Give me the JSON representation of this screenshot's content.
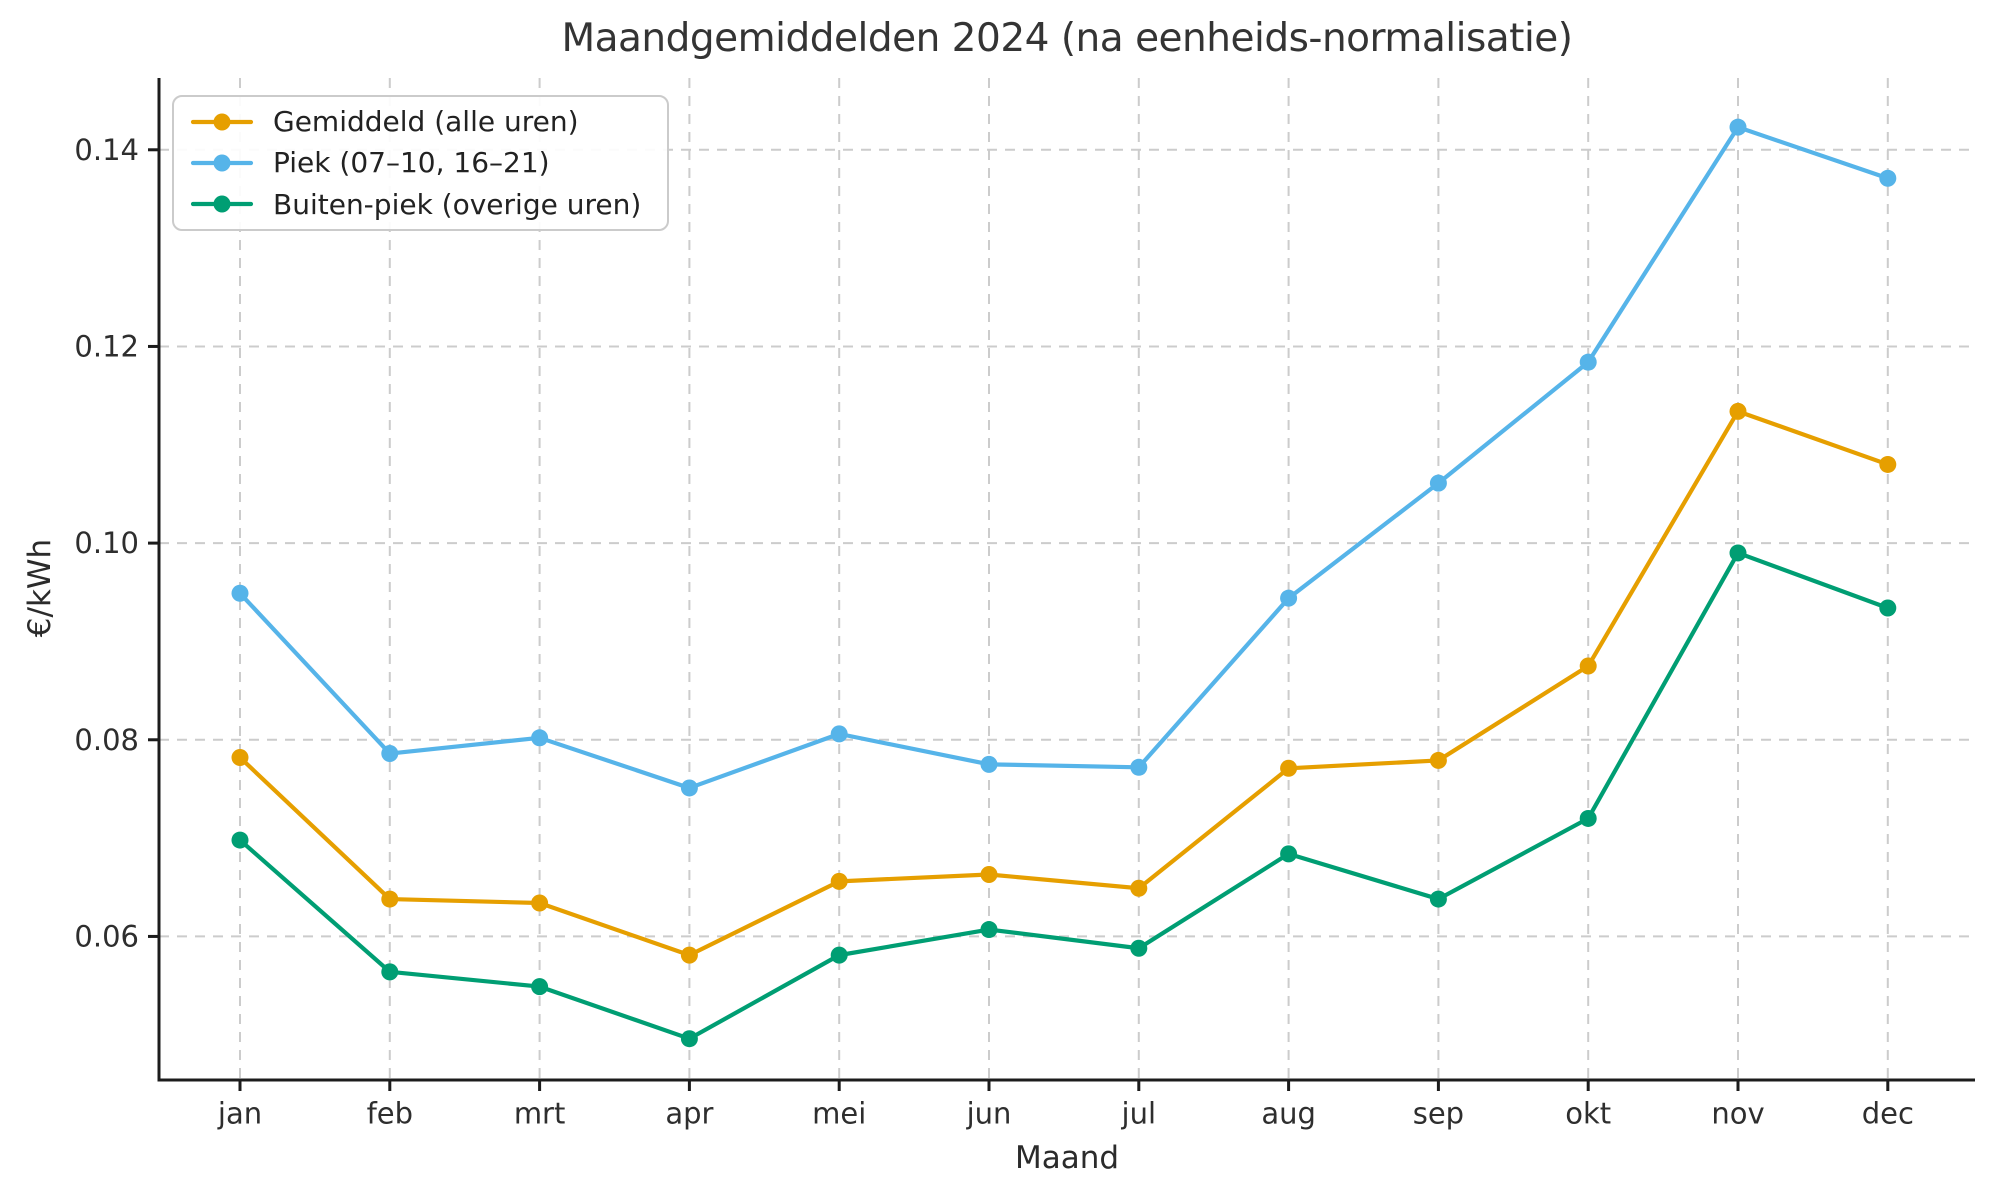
{
  "chart_data": {
    "type": "line",
    "title": "Maandgemiddelden 2024 (na eenheids-normalisatie)",
    "xlabel": "Maand",
    "ylabel": "€/kWh",
    "categories": [
      "jan",
      "feb",
      "mrt",
      "apr",
      "mei",
      "jun",
      "jul",
      "aug",
      "sep",
      "okt",
      "nov",
      "dec"
    ],
    "series": [
      {
        "name": "Gemiddeld (alle uren)",
        "color": "#E69F00",
        "values": [
          0.0782,
          0.0638,
          0.0634,
          0.0581,
          0.0656,
          0.0663,
          0.0649,
          0.0771,
          0.0779,
          0.0875,
          0.1134,
          0.108
        ]
      },
      {
        "name": "Piek (07–10, 16–21)",
        "color": "#56B4E9",
        "values": [
          0.0949,
          0.0786,
          0.0802,
          0.0751,
          0.0806,
          0.0775,
          0.0772,
          0.0944,
          0.1061,
          0.1184,
          0.1423,
          0.1371
        ]
      },
      {
        "name": "Buiten-piek (overige uren)",
        "color": "#009E73",
        "values": [
          0.0698,
          0.0564,
          0.0549,
          0.0496,
          0.0581,
          0.0607,
          0.0588,
          0.0684,
          0.0638,
          0.072,
          0.099,
          0.0934
        ]
      }
    ],
    "ylim": [
      0.0454,
      0.1473
    ],
    "yticks": [
      0.06,
      0.08,
      0.1,
      0.12,
      0.14
    ],
    "ytick_labels": [
      "0.06",
      "0.08",
      "0.10",
      "0.12",
      "0.14"
    ],
    "grid": true,
    "grid_style": "dashed",
    "legend_position": "upper left",
    "marker": "o"
  },
  "style": {
    "background": "#ffffff",
    "grid_color": "#cccccc",
    "spine_color": "#1c1c1c",
    "tick_color": "#1c1c1c",
    "tick_label_color": "#2e2e2e",
    "title_color": "#343434"
  }
}
